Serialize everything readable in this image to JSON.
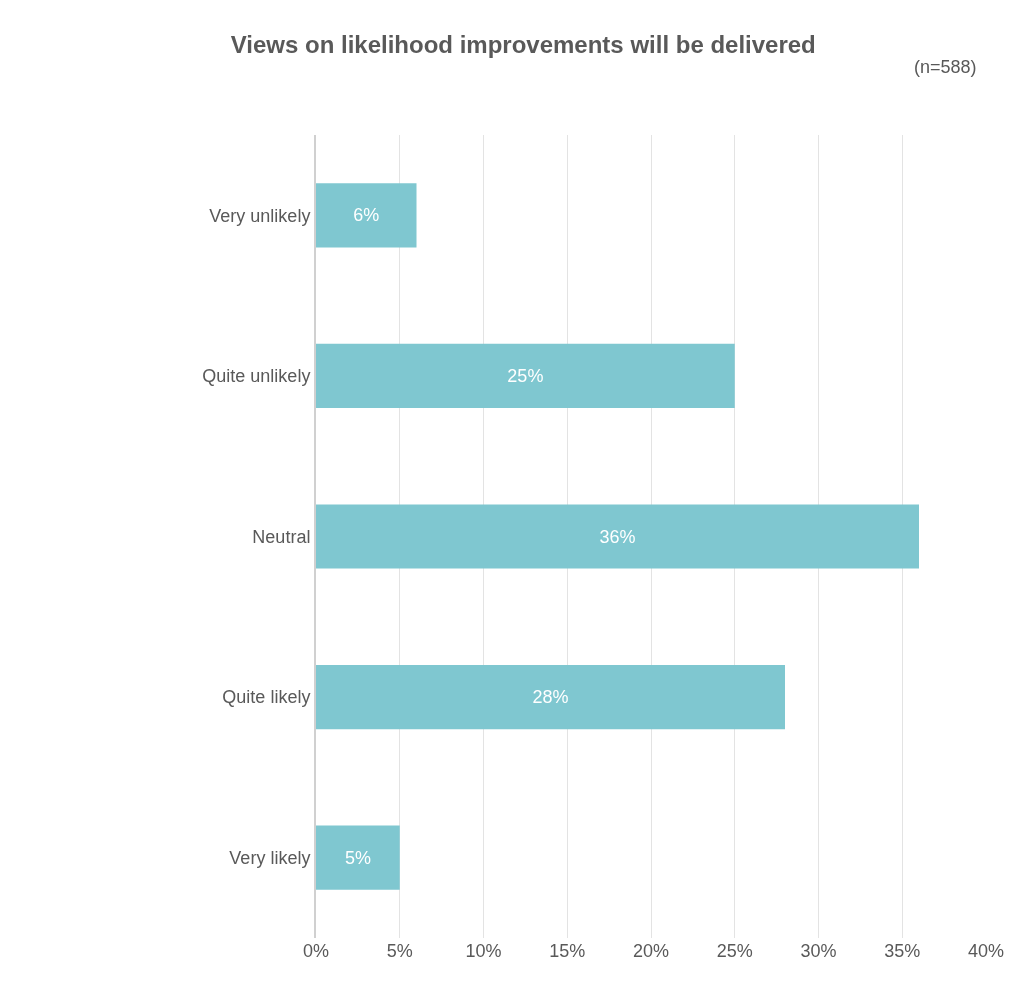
{
  "chart_data": {
    "type": "bar",
    "orientation": "horizontal",
    "title": "Views on likelihood improvements will be delivered",
    "annotations": [
      "(n=588)"
    ],
    "categories": [
      "Very unlikely",
      "Quite unlikely",
      "Neutral",
      "Quite likely",
      "Very likely"
    ],
    "values": [
      6,
      25,
      36,
      28,
      5
    ],
    "value_labels": [
      "6%",
      "25%",
      "36%",
      "28%",
      "5%"
    ],
    "color": "#7fc7d0",
    "xlim": [
      0,
      40
    ],
    "xticks": [
      {
        "value": 0,
        "label": "0%"
      },
      {
        "value": 5,
        "label": "5%"
      },
      {
        "value": 10,
        "label": "10%"
      },
      {
        "value": 15,
        "label": "15%"
      },
      {
        "value": 20,
        "label": "20%"
      },
      {
        "value": 25,
        "label": "25%"
      },
      {
        "value": 30,
        "label": "30%"
      },
      {
        "value": 35,
        "label": "35%"
      },
      {
        "value": 40,
        "label": "40%"
      }
    ],
    "grid": "x"
  }
}
